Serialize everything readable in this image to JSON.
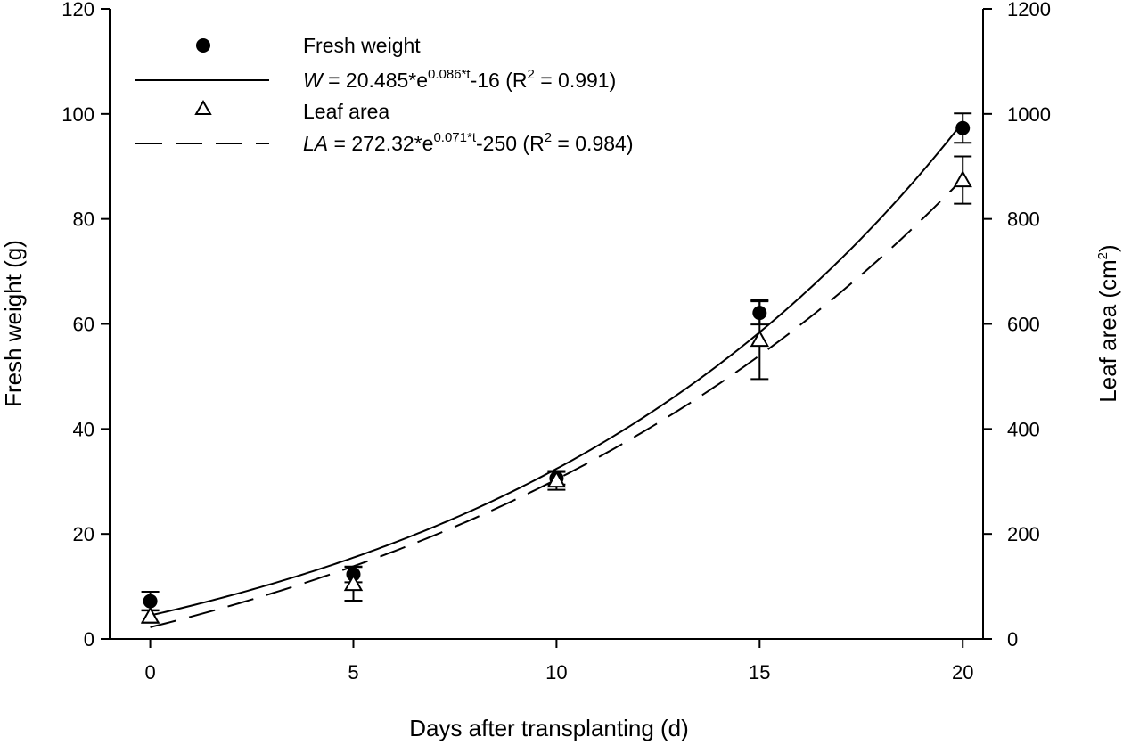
{
  "chart_data": {
    "type": "scatter",
    "title": "",
    "xlabel": "Days after transplanting (d)",
    "ylabel": "Fresh weight (g)",
    "y2label": "Leaf area (cm",
    "y2label_sup": "2",
    "y2label_close": ")",
    "xlim": [
      -1,
      20.5
    ],
    "ylim": [
      0,
      120
    ],
    "y2lim": [
      0,
      1200
    ],
    "x_ticks": [
      0,
      5,
      10,
      15,
      20
    ],
    "y_ticks": [
      0,
      20,
      40,
      60,
      80,
      100,
      120
    ],
    "y2_ticks": [
      0,
      200,
      400,
      600,
      800,
      1000,
      1200
    ],
    "legend_position": "top-left",
    "grid": false,
    "series": [
      {
        "name": "Fresh weight",
        "axis": "left",
        "marker": "filled-circle",
        "x": [
          0,
          5,
          10,
          15,
          20
        ],
        "y": [
          7.2,
          12.3,
          30.6,
          62.1,
          97.3
        ],
        "error": [
          1.8,
          1.5,
          1.2,
          2.2,
          2.8
        ]
      },
      {
        "name": "Leaf area",
        "axis": "right",
        "marker": "open-triangle",
        "x": [
          0,
          5,
          10,
          15,
          20
        ],
        "y": [
          43,
          105,
          302,
          570,
          874
        ],
        "error": [
          12,
          32,
          18,
          75,
          45
        ]
      }
    ],
    "fits": [
      {
        "name": "W = 20.485*e0.086*t-16 (R2 = 0.991)",
        "axis": "left",
        "style": "solid",
        "a": 20.485,
        "b": 0.086,
        "c": -16,
        "label_var": "W",
        "label_mid": " = 20.485*e",
        "label_exp": "0.086*t",
        "label_tail": "-16 (R",
        "label_r2sup": "2",
        "label_end": " = 0.991)"
      },
      {
        "name": "LA = 272.32*e0.071*t-250 (R2 = 0.984)",
        "axis": "right",
        "style": "dashed",
        "a": 272.32,
        "b": 0.071,
        "c": -250,
        "label_var": "LA",
        "label_mid": " = 272.32*e",
        "label_exp": "0.071*t",
        "label_tail": "-250 (R",
        "label_r2sup": "2",
        "label_end": " = 0.984)"
      }
    ]
  }
}
